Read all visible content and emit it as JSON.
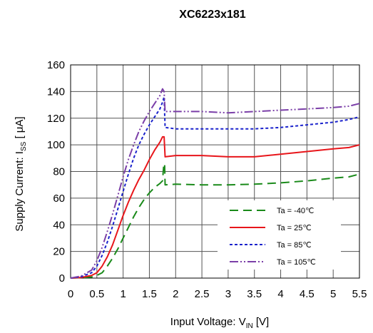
{
  "chart_data": {
    "type": "line",
    "title": "XC6223x181",
    "xlabel": {
      "prefix": "Input Voltage: V",
      "sub": "IN",
      "suffix": " [V]"
    },
    "ylabel": {
      "prefix": "Supply Current: I",
      "sub": "SS",
      "suffix": " [ μA]"
    },
    "xlim": [
      0,
      5.5
    ],
    "ylim": [
      0,
      160
    ],
    "xticks": [
      "0",
      "0.5",
      "1",
      "1.5",
      "2",
      "2.5",
      "3",
      "3.5",
      "4",
      "4.5",
      "5",
      "5.5"
    ],
    "yticks": [
      "0",
      "20",
      "40",
      "60",
      "80",
      "100",
      "120",
      "140",
      "160"
    ],
    "grid": true,
    "legend_position": "bottom-right",
    "series": [
      {
        "name": "Ta = -40℃",
        "color": "#1a8a1a",
        "dash": "long-dash",
        "points": [
          [
            0,
            0
          ],
          [
            0.2,
            0.3
          ],
          [
            0.4,
            0.8
          ],
          [
            0.5,
            2
          ],
          [
            0.6,
            4
          ],
          [
            0.7,
            9
          ],
          [
            0.8,
            15
          ],
          [
            0.9,
            22
          ],
          [
            1.0,
            30
          ],
          [
            1.1,
            38
          ],
          [
            1.2,
            46
          ],
          [
            1.3,
            53
          ],
          [
            1.4,
            59
          ],
          [
            1.5,
            64
          ],
          [
            1.6,
            68
          ],
          [
            1.7,
            71
          ],
          [
            1.75,
            73
          ],
          [
            1.77,
            83
          ],
          [
            1.79,
            86
          ],
          [
            1.8,
            70
          ],
          [
            2.0,
            70.5
          ],
          [
            2.5,
            70
          ],
          [
            3.0,
            70
          ],
          [
            3.5,
            70.5
          ],
          [
            4.0,
            71.5
          ],
          [
            4.5,
            73
          ],
          [
            5.0,
            75
          ],
          [
            5.3,
            76
          ],
          [
            5.5,
            78
          ]
        ]
      },
      {
        "name": "Ta = 25℃",
        "color": "#e8161b",
        "dash": "solid",
        "points": [
          [
            0,
            0
          ],
          [
            0.2,
            0.5
          ],
          [
            0.4,
            2
          ],
          [
            0.5,
            4
          ],
          [
            0.6,
            9
          ],
          [
            0.7,
            16
          ],
          [
            0.8,
            25
          ],
          [
            0.9,
            36
          ],
          [
            1.0,
            47
          ],
          [
            1.1,
            57
          ],
          [
            1.2,
            66
          ],
          [
            1.3,
            74
          ],
          [
            1.4,
            81
          ],
          [
            1.5,
            89
          ],
          [
            1.6,
            96
          ],
          [
            1.7,
            102
          ],
          [
            1.75,
            106
          ],
          [
            1.78,
            106
          ],
          [
            1.8,
            91
          ],
          [
            2.0,
            92
          ],
          [
            2.5,
            92
          ],
          [
            3.0,
            91
          ],
          [
            3.5,
            91
          ],
          [
            4.0,
            93
          ],
          [
            4.5,
            95
          ],
          [
            5.0,
            97
          ],
          [
            5.3,
            98
          ],
          [
            5.5,
            100
          ]
        ]
      },
      {
        "name": "Ta = 85℃",
        "color": "#1a22cc",
        "dash": "short-dash",
        "points": [
          [
            0,
            0
          ],
          [
            0.2,
            1
          ],
          [
            0.4,
            4
          ],
          [
            0.5,
            9
          ],
          [
            0.6,
            17
          ],
          [
            0.7,
            27
          ],
          [
            0.8,
            39
          ],
          [
            0.9,
            52
          ],
          [
            1.0,
            65
          ],
          [
            1.1,
            78
          ],
          [
            1.2,
            90
          ],
          [
            1.3,
            100
          ],
          [
            1.4,
            108
          ],
          [
            1.5,
            115
          ],
          [
            1.6,
            121
          ],
          [
            1.7,
            127
          ],
          [
            1.75,
            132
          ],
          [
            1.78,
            136
          ],
          [
            1.8,
            113
          ],
          [
            2.0,
            112
          ],
          [
            2.5,
            112
          ],
          [
            3.0,
            112
          ],
          [
            3.5,
            112
          ],
          [
            4.0,
            113
          ],
          [
            4.5,
            115
          ],
          [
            5.0,
            117
          ],
          [
            5.3,
            119
          ],
          [
            5.5,
            121
          ]
        ]
      },
      {
        "name": "Ta = 105℃",
        "color": "#7b3fa8",
        "dash": "dash-dot-dot",
        "points": [
          [
            0,
            0
          ],
          [
            0.2,
            1.5
          ],
          [
            0.4,
            6
          ],
          [
            0.5,
            13
          ],
          [
            0.6,
            23
          ],
          [
            0.7,
            35
          ],
          [
            0.8,
            48
          ],
          [
            0.9,
            62
          ],
          [
            1.0,
            76
          ],
          [
            1.1,
            89
          ],
          [
            1.2,
            100
          ],
          [
            1.3,
            110
          ],
          [
            1.4,
            118
          ],
          [
            1.5,
            125
          ],
          [
            1.6,
            131
          ],
          [
            1.7,
            137
          ],
          [
            1.75,
            142
          ],
          [
            1.78,
            140
          ],
          [
            1.8,
            125
          ],
          [
            2.0,
            125
          ],
          [
            2.5,
            125
          ],
          [
            3.0,
            124
          ],
          [
            3.5,
            125
          ],
          [
            4.0,
            126
          ],
          [
            4.5,
            127
          ],
          [
            5.0,
            128
          ],
          [
            5.3,
            129
          ],
          [
            5.5,
            131
          ]
        ]
      }
    ]
  }
}
